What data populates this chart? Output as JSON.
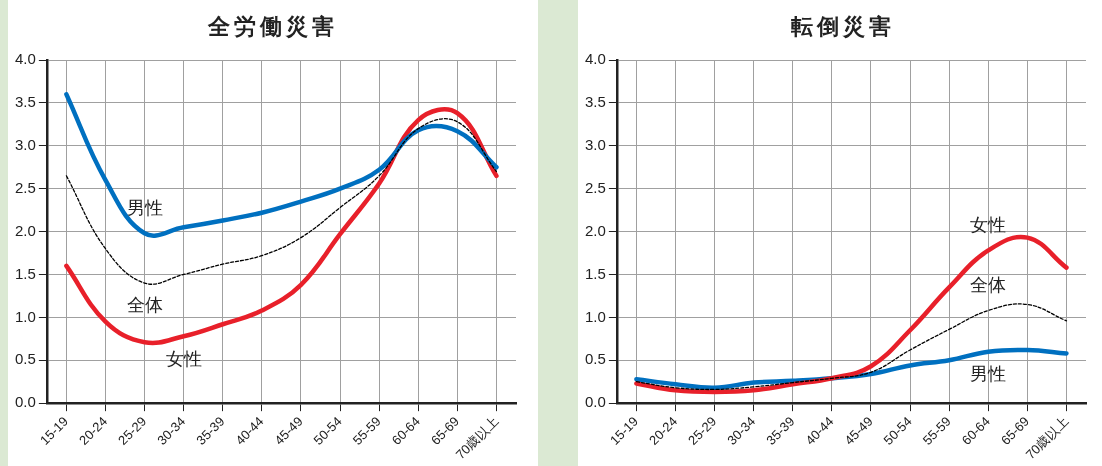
{
  "chart_data": [
    {
      "type": "line",
      "title": "全労働災害",
      "categories": [
        "15-19",
        "20-24",
        "25-29",
        "30-34",
        "35-39",
        "40-44",
        "45-49",
        "50-54",
        "55-59",
        "60-64",
        "65-69",
        "70歳以上"
      ],
      "ylim": [
        0,
        4
      ],
      "yticks": [
        {
          "value": 0,
          "label": "0.0"
        },
        0.5,
        {
          "value": 1,
          "label": "1.0"
        },
        1.5,
        {
          "value": 2,
          "label": "2.0"
        },
        2.5,
        {
          "value": 3,
          "label": "3.0"
        },
        3.5,
        {
          "value": 4,
          "label": "4.0"
        }
      ],
      "grid": true,
      "legend": false,
      "marker": "none",
      "series": [
        {
          "name": "男性",
          "color": "#0070c0",
          "values": [
            3.6,
            2.6,
            1.98,
            2.05,
            2.13,
            2.22,
            2.35,
            2.5,
            2.72,
            3.18,
            3.17,
            2.75
          ]
        },
        {
          "name": "全体",
          "color": "#000000",
          "line_style": "dashed",
          "values": [
            2.65,
            1.8,
            1.4,
            1.5,
            1.62,
            1.72,
            1.93,
            2.28,
            2.65,
            3.2,
            3.28,
            2.7
          ]
        },
        {
          "name": "女性",
          "color": "#e8202a",
          "values": [
            1.6,
            0.95,
            0.71,
            0.78,
            0.92,
            1.08,
            1.38,
            1.97,
            2.56,
            3.3,
            3.38,
            2.65
          ]
        }
      ]
    },
    {
      "type": "line",
      "title": "転倒災害",
      "categories": [
        "15-19",
        "20-24",
        "25-29",
        "30-34",
        "35-39",
        "40-44",
        "45-49",
        "50-54",
        "55-59",
        "60-64",
        "65-69",
        "70歳以上"
      ],
      "ylim": [
        0,
        4
      ],
      "yticks": [
        {
          "value": 0,
          "label": "0.0"
        },
        0.5,
        {
          "value": 1,
          "label": "1.0"
        },
        1.5,
        {
          "value": 2,
          "label": "2.0"
        },
        2.5,
        {
          "value": 3,
          "label": "3.0"
        },
        3.5,
        {
          "value": 4,
          "label": "4.0"
        }
      ],
      "grid": true,
      "legend": false,
      "marker": "none",
      "series": [
        {
          "name": "女性",
          "color": "#e8202a",
          "values": [
            0.23,
            0.15,
            0.13,
            0.15,
            0.22,
            0.29,
            0.43,
            0.85,
            1.35,
            1.78,
            1.93,
            1.58
          ]
        },
        {
          "name": "全体",
          "color": "#000000",
          "line_style": "dashed",
          "values": [
            0.25,
            0.18,
            0.16,
            0.19,
            0.24,
            0.29,
            0.36,
            0.62,
            0.86,
            1.08,
            1.15,
            0.96
          ]
        },
        {
          "name": "男性",
          "color": "#0070c0",
          "values": [
            0.28,
            0.22,
            0.18,
            0.24,
            0.26,
            0.29,
            0.34,
            0.44,
            0.5,
            0.6,
            0.62,
            0.58
          ]
        }
      ]
    }
  ]
}
